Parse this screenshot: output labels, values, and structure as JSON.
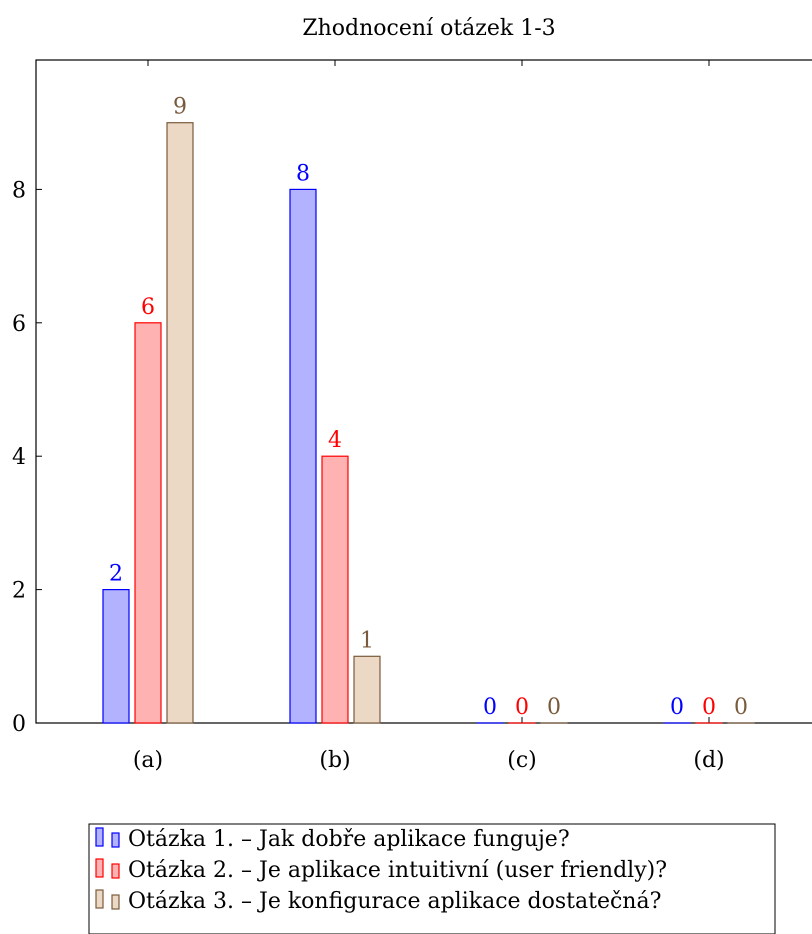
{
  "chart_data": {
    "type": "bar",
    "title": "Zhodnocení otázek 1-3",
    "xlabel": "",
    "ylabel": "",
    "categories": [
      "(a)",
      "(b)",
      "(c)",
      "(d)"
    ],
    "series": [
      {
        "name": "Otázka 1. – Jak dobře aplikace funguje?",
        "values": [
          2,
          8,
          0,
          0
        ],
        "stroke": "#0000ff",
        "fill": "#b2b2ff"
      },
      {
        "name": "Otázka 2. – Je aplikace intuitivní (user friendly)?",
        "values": [
          6,
          4,
          0,
          0
        ],
        "stroke": "#ff0000",
        "fill": "#ffb2b2"
      },
      {
        "name": "Otázka 3. – Je konfigurace aplikace dostatečná?",
        "values": [
          9,
          1,
          0,
          0
        ],
        "stroke": "#7a5a3c",
        "fill": "#ebd9c5"
      }
    ],
    "ylim": [
      0,
      10
    ],
    "yticks": [
      "0",
      "2",
      "4",
      "6",
      "8"
    ],
    "grid": false,
    "legend_position": "bottom",
    "data_labels": true
  }
}
